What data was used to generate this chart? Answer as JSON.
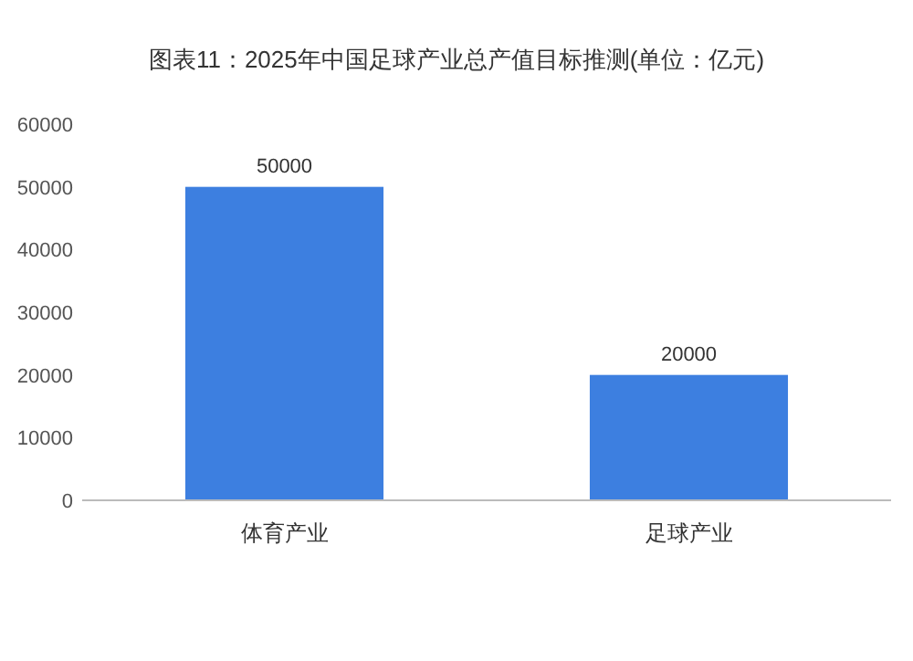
{
  "chart_data": {
    "type": "bar",
    "title": "图表11：2025年中国足球产业总产值目标推测(单位：亿元)",
    "categories": [
      "体育产业",
      "足球产业"
    ],
    "values": [
      50000,
      20000
    ],
    "color": "#3d7fe0",
    "ylim": [
      0,
      60000
    ],
    "yticks": [
      0,
      10000,
      20000,
      30000,
      40000,
      50000,
      60000
    ],
    "data_labels": true
  }
}
